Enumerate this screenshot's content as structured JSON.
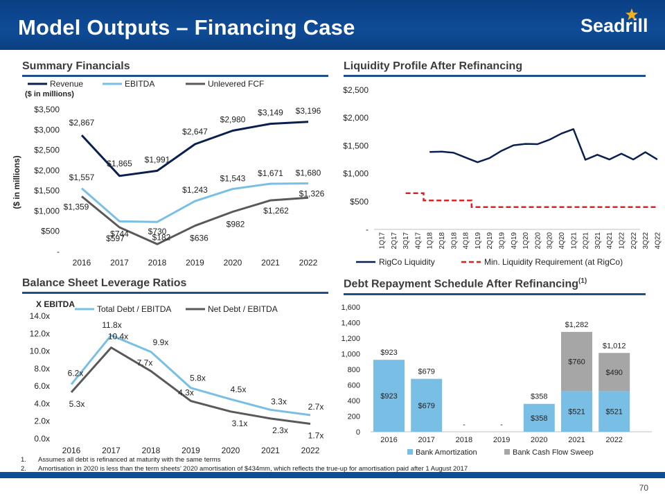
{
  "title": "Model Outputs – Financing Case",
  "logo_text": "Seadrill",
  "colors": {
    "navy": "#0b1f4f",
    "light_blue": "#79bfe5",
    "grey": "#595959",
    "red": "#e02020",
    "banner": "#0f4c97",
    "bar_blue": "#79bfe5",
    "bar_grey": "#a6a6a6"
  },
  "sections": {
    "summary": "Summary Financials",
    "liquidity": "Liquidity Profile After Refinancing",
    "leverage": "Balance Sheet Leverage Ratios",
    "repayment": "Debt Repayment Schedule After Refinancing",
    "repayment_sup": "(1)"
  },
  "footnotes": [
    {
      "num": "1.",
      "text": "Assumes all debt is refinanced at maturity with the same terms"
    },
    {
      "num": "2.",
      "text": "Amortisation in 2020 is less than the term sheets’ 2020 amortisation of $434mm, which reflects the true-up for amortisation paid after 1 August 2017"
    }
  ],
  "page_number": "70",
  "chart_data": [
    {
      "id": "summary",
      "type": "line",
      "title": "Summary Financials",
      "units_note": "($ in millions)",
      "ylabel": "($ in millions)",
      "categories": [
        "2016",
        "2017",
        "2018",
        "2019",
        "2020",
        "2021",
        "2022"
      ],
      "ylim": [
        0,
        3500
      ],
      "yticks": [
        0,
        500,
        1000,
        1500,
        2000,
        2500,
        3000,
        3500
      ],
      "ytick_labels": [
        "-",
        "$500",
        "$1,000",
        "$1,500",
        "$2,000",
        "$2,500",
        "$3,000",
        "$3,500"
      ],
      "legend": "top",
      "series": [
        {
          "name": "Revenue",
          "values": [
            2867,
            1865,
            1991,
            2647,
            2980,
            3149,
            3196
          ],
          "labels": [
            "$2,867",
            "$1,865",
            "$1,991",
            "$2,647",
            "$2,980",
            "$3,149",
            "$3,196"
          ]
        },
        {
          "name": "EBITDA",
          "values": [
            1557,
            744,
            730,
            1243,
            1543,
            1671,
            1680
          ],
          "labels": [
            "$1,557",
            "$744",
            "$730",
            "$1,243",
            "$1,543",
            "$1,671",
            "$1,680"
          ]
        },
        {
          "name": "Unlevered FCF",
          "values": [
            1359,
            597,
            182,
            636,
            982,
            1262,
            1326
          ],
          "labels": [
            "$1,359",
            "$597",
            "$182",
            "$636",
            "$982",
            "$1,262",
            "$1,326"
          ]
        }
      ]
    },
    {
      "id": "liquidity",
      "type": "line",
      "title": "Liquidity Profile After Refinancing",
      "categories": [
        "1Q17",
        "2Q17",
        "3Q17",
        "4Q17",
        "1Q18",
        "2Q18",
        "3Q18",
        "4Q18",
        "1Q19",
        "2Q19",
        "3Q19",
        "4Q19",
        "1Q20",
        "2Q20",
        "3Q20",
        "4Q20",
        "1Q21",
        "2Q21",
        "3Q21",
        "4Q21",
        "1Q22",
        "2Q22",
        "3Q22",
        "4Q22"
      ],
      "ylim": [
        0,
        2500
      ],
      "yticks": [
        0,
        500,
        1000,
        1500,
        2000,
        2500
      ],
      "ytick_labels": [
        "-",
        "$500",
        "$1,000",
        "$1,500",
        "$2,000",
        "$2,500"
      ],
      "legend": "bottom",
      "series": [
        {
          "name": "RigCo Liquidity",
          "values": [
            null,
            null,
            null,
            null,
            1390,
            1395,
            1375,
            1290,
            1205,
            1280,
            1410,
            1510,
            1535,
            1530,
            1610,
            1720,
            1800,
            1250,
            1340,
            1255,
            1360,
            1255,
            1385,
            1255
          ]
        },
        {
          "name": "Min. Liquidity Requirement (at RigCo)",
          "values": [
            null,
            null,
            650,
            650,
            520,
            520,
            520,
            520,
            400,
            400,
            400,
            400,
            400,
            400,
            400,
            400,
            400,
            400,
            400,
            400,
            400,
            400,
            400,
            400
          ]
        }
      ]
    },
    {
      "id": "leverage",
      "type": "line",
      "title": "Balance Sheet Leverage Ratios",
      "units_note": "X EBITDA",
      "categories": [
        "2016",
        "2017",
        "2018",
        "2019",
        "2020",
        "2021",
        "2022"
      ],
      "ylim": [
        0,
        14
      ],
      "yticks": [
        0,
        2,
        4,
        6,
        8,
        10,
        12,
        14
      ],
      "ytick_labels": [
        "0.0x",
        "2.0x",
        "4.0x",
        "6.0x",
        "8.0x",
        "10.0x",
        "12.0x",
        "14.0x"
      ],
      "legend": "top",
      "series": [
        {
          "name": "Total Debt / EBITDA",
          "values": [
            6.2,
            11.8,
            9.9,
            5.8,
            4.5,
            3.3,
            2.7
          ],
          "labels": [
            "6.2x",
            "11.8x",
            "9.9x",
            "5.8x",
            "4.5x",
            "3.3x",
            "2.7x"
          ]
        },
        {
          "name": "Net Debt / EBITDA",
          "values": [
            5.3,
            10.4,
            7.7,
            4.3,
            3.1,
            2.3,
            1.7
          ],
          "labels": [
            "5.3x",
            "10.4x",
            "7.7x",
            "4.3x",
            "3.1x",
            "2.3x",
            "1.7x"
          ]
        }
      ]
    },
    {
      "id": "repayment",
      "type": "bar",
      "stacked": true,
      "title": "Debt Repayment Schedule After Refinancing",
      "categories": [
        "2016",
        "2017",
        "2018",
        "2019",
        "2020",
        "2021",
        "2022"
      ],
      "ylim": [
        0,
        1600
      ],
      "yticks": [
        0,
        200,
        400,
        600,
        800,
        1000,
        1200,
        1400,
        1600
      ],
      "ytick_labels": [
        "0",
        "200",
        "400",
        "600",
        "800",
        "1,000",
        "1,200",
        "1,400",
        "1,600"
      ],
      "legend": "bottom",
      "series": [
        {
          "name": "Bank Amortization",
          "values": [
            923,
            679,
            0,
            0,
            358,
            521,
            521
          ],
          "labels": [
            "$923",
            "$679",
            "",
            "",
            "$358",
            "$521",
            "$521"
          ]
        },
        {
          "name": "Bank Cash Flow Sweep",
          "values": [
            0,
            0,
            0,
            0,
            0,
            760,
            490
          ],
          "labels": [
            "",
            "",
            "",
            "",
            "",
            "$760",
            "$490"
          ]
        }
      ],
      "totals": [
        "$923",
        "$679",
        "-",
        "-",
        "$358",
        "$1,282",
        "$1,012"
      ]
    }
  ]
}
